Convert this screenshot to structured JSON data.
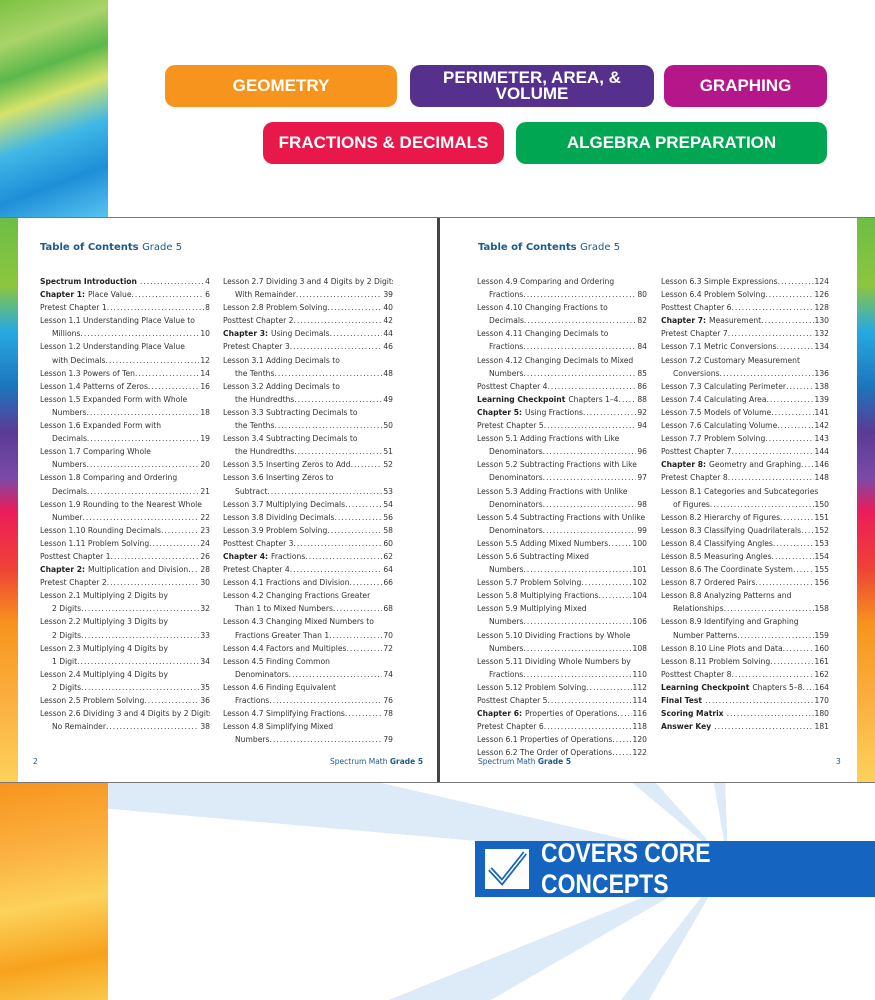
{
  "colors": {
    "geometry": "#f7941d",
    "perimeter": "#55308d",
    "graphing": "#b5178b",
    "fractions": "#e8184a",
    "algebra": "#00a651",
    "banner": "#1565c0",
    "title": "#1c5a8a"
  },
  "topics": [
    "GEOMETRY",
    "PERIMETER, AREA, & VOLUME",
    "GRAPHING",
    "FRACTIONS & DECIMALS",
    "ALGEBRA PREPARATION"
  ],
  "left_page": {
    "title": "Table of Contents",
    "grade": "Grade 5",
    "page_number": "2",
    "footer": "Spectrum Math",
    "footer_grade": "Grade 5"
  },
  "right_page": {
    "title": "Table of Contents",
    "grade": "Grade 5",
    "page_number": "3",
    "footer": "Spectrum Math",
    "footer_grade": "Grade 5"
  },
  "banner": {
    "text": "COVERS CORE CONCEPTS",
    "icon": "checkmark-icon"
  },
  "columns": [
    [
      {
        "b": "Spectrum Introduction",
        "t": "",
        "p": "4"
      },
      {
        "b": "Chapter 1:",
        "t": "Place Value",
        "p": "6"
      },
      {
        "t": "Pretest Chapter 1",
        "p": "8"
      },
      {
        "t": "Lesson 1.1 Understanding Place Value to",
        "c": "Millions",
        "p": "10"
      },
      {
        "t": "Lesson 1.2 Understanding Place Value",
        "c": "with Decimals",
        "p": "12"
      },
      {
        "t": "Lesson 1.3 Powers of Ten",
        "p": "14"
      },
      {
        "t": "Lesson 1.4 Patterns of Zeros",
        "p": "16"
      },
      {
        "t": "Lesson 1.5 Expanded Form with Whole",
        "c": "Numbers",
        "p": "18"
      },
      {
        "t": "Lesson 1.6 Expanded Form with",
        "c": "Decimals",
        "p": "19"
      },
      {
        "t": "Lesson 1.7 Comparing Whole",
        "c": "Numbers",
        "p": "20"
      },
      {
        "t": "Lesson 1.8 Comparing and Ordering",
        "c": "Decimals",
        "p": "21"
      },
      {
        "t": "Lesson 1.9 Rounding to the Nearest Whole",
        "c": "Number",
        "p": "22"
      },
      {
        "t": "Lesson 1.10 Rounding Decimals",
        "p": "23"
      },
      {
        "t": "Lesson 1.11 Problem Solving",
        "p": "24"
      },
      {
        "t": "Posttest Chapter 1",
        "p": "26"
      },
      {
        "b": "Chapter 2:",
        "t": "Multiplication and Division",
        "p": "28"
      },
      {
        "t": "Pretest Chapter 2",
        "p": "30"
      },
      {
        "t": "Lesson 2.1 Multiplying 2 Digits by",
        "c": "2 Digits",
        "p": "32"
      },
      {
        "t": "Lesson 2.2 Multiplying 3 Digits by",
        "c": "2 Digits",
        "p": "33"
      },
      {
        "t": "Lesson 2.3 Multiplying 4 Digits by",
        "c": "1 Digit",
        "p": "34"
      },
      {
        "t": "Lesson 2.4 Multiplying 4 Digits by",
        "c": "2 Digits",
        "p": "35"
      },
      {
        "t": "Lesson 2.5 Problem Solving",
        "p": "36"
      },
      {
        "t": "Lesson 2.6 Dividing 3 and 4 Digits by 2 Digits,",
        "c": "No Remainder",
        "p": "38"
      }
    ],
    [
      {
        "t": "Lesson 2.7 Dividing 3 and 4 Digits by 2 Digits,",
        "c": "With Remainder",
        "p": "39"
      },
      {
        "t": "Lesson 2.8 Problem Solving",
        "p": "40"
      },
      {
        "t": "Posttest Chapter 2",
        "p": "42"
      },
      {
        "b": "Chapter 3:",
        "t": "Using Decimals",
        "p": "44"
      },
      {
        "t": "Pretest Chapter 3",
        "p": "46"
      },
      {
        "t": "Lesson 3.1 Adding Decimals to",
        "c": "the Tenths",
        "p": "48"
      },
      {
        "t": "Lesson 3.2 Adding Decimals to",
        "c": "the Hundredths",
        "p": "49"
      },
      {
        "t": "Lesson 3.3 Subtracting Decimals to",
        "c": "the Tenths",
        "p": "50"
      },
      {
        "t": "Lesson 3.4 Subtracting Decimals to",
        "c": "the Hundredths",
        "p": "51"
      },
      {
        "t": "Lesson 3.5 Inserting Zeros to Add",
        "p": "52"
      },
      {
        "t": "Lesson 3.6 Inserting Zeros to",
        "c": "Subtract",
        "p": "53"
      },
      {
        "t": "Lesson 3.7 Multiplying Decimals",
        "p": "54"
      },
      {
        "t": "Lesson 3.8 Dividing Decimals",
        "p": "56"
      },
      {
        "t": "Lesson 3.9 Problem Solving",
        "p": "58"
      },
      {
        "t": "Posttest Chapter 3",
        "p": "60"
      },
      {
        "b": "Chapter 4:",
        "t": "Fractions",
        "p": "62"
      },
      {
        "t": "Pretest Chapter 4",
        "p": "64"
      },
      {
        "t": "Lesson 4.1 Fractions and Division",
        "p": "66"
      },
      {
        "t": "Lesson 4.2 Changing Fractions Greater",
        "c": "Than 1 to Mixed Numbers",
        "p": "68"
      },
      {
        "t": "Lesson 4.3 Changing Mixed Numbers to",
        "c": "Fractions Greater Than 1",
        "p": "70"
      },
      {
        "t": "Lesson 4.4 Factors and Multiples",
        "p": "72"
      },
      {
        "t": "Lesson 4.5 Finding Common",
        "c": "Denominators",
        "p": "74"
      },
      {
        "t": "Lesson 4.6 Finding Equivalent",
        "c": "Fractions",
        "p": "76"
      },
      {
        "t": "Lesson 4.7 Simplifying Fractions",
        "p": "78"
      },
      {
        "t": "Lesson 4.8 Simplifying Mixed",
        "c": "Numbers",
        "p": "79"
      }
    ],
    [
      {
        "t": "Lesson 4.9 Comparing and Ordering",
        "c": "Fractions",
        "p": "80"
      },
      {
        "t": "Lesson 4.10 Changing Fractions to",
        "c": "Decimals",
        "p": "82"
      },
      {
        "t": "Lesson 4.11 Changing Decimals to",
        "c": "Fractions",
        "p": "84"
      },
      {
        "t": "Lesson 4.12 Changing Decimals to Mixed",
        "c": "Numbers",
        "p": "85"
      },
      {
        "t": "Posttest Chapter 4",
        "p": "86"
      },
      {
        "b": "Learning Checkpoint",
        "t": "Chapters 1–4",
        "p": "88"
      },
      {
        "b": "Chapter 5:",
        "t": "Using Fractions",
        "p": "92"
      },
      {
        "t": "Pretest Chapter 5",
        "p": "94"
      },
      {
        "t": "Lesson 5.1 Adding Fractions with Like",
        "c": "Denominators",
        "p": "96"
      },
      {
        "t": "Lesson 5.2 Subtracting Fractions with Like",
        "c": "Denominators",
        "p": "97"
      },
      {
        "t": "Lesson 5.3 Adding Fractions with Unlike",
        "c": "Denominators",
        "p": "98"
      },
      {
        "t": "Lesson 5.4 Subtracting Fractions with Unlike",
        "c": "Denominators",
        "p": "99"
      },
      {
        "t": "Lesson 5.5 Adding Mixed Numbers",
        "p": "100"
      },
      {
        "t": "Lesson 5.6 Subtracting Mixed",
        "c": "Numbers",
        "p": "101"
      },
      {
        "t": "Lesson 5.7 Problem Solving",
        "p": "102"
      },
      {
        "t": "Lesson 5.8 Multiplying Fractions",
        "p": "104"
      },
      {
        "t": "Lesson 5.9 Multiplying Mixed",
        "c": "Numbers",
        "p": "106"
      },
      {
        "t": "Lesson 5.10 Dividing Fractions by Whole",
        "c": "Numbers",
        "p": "108"
      },
      {
        "t": "Lesson 5.11 Dividing Whole Numbers by",
        "c": "Fractions",
        "p": "110"
      },
      {
        "t": "Lesson 5.12 Problem Solving",
        "p": "112"
      },
      {
        "t": "Posttest Chapter 5",
        "p": "114"
      },
      {
        "b": "Chapter 6:",
        "t": "Properties of Operations",
        "p": "116"
      },
      {
        "t": "Pretest Chapter 6",
        "p": "118"
      },
      {
        "t": "Lesson 6.1 Properties of Operations",
        "p": "120"
      },
      {
        "t": "Lesson 6.2 The Order of Operations",
        "p": "122"
      }
    ],
    [
      {
        "t": "Lesson 6.3 Simple Expressions",
        "p": "124"
      },
      {
        "t": "Lesson 6.4 Problem Solving",
        "p": "126"
      },
      {
        "t": "Posttest Chapter 6",
        "p": "128"
      },
      {
        "b": "Chapter 7:",
        "t": "Measurement",
        "p": "130"
      },
      {
        "t": "Pretest Chapter 7",
        "p": "132"
      },
      {
        "t": "Lesson 7.1 Metric Conversions",
        "p": "134"
      },
      {
        "t": "Lesson 7.2 Customary Measurement",
        "c": "Conversions",
        "p": "136"
      },
      {
        "t": "Lesson 7.3 Calculating Perimeter",
        "p": "138"
      },
      {
        "t": "Lesson 7.4 Calculating Area",
        "p": "139"
      },
      {
        "t": "Lesson 7.5 Models of Volume",
        "p": "141"
      },
      {
        "t": "Lesson 7.6 Calculating Volume",
        "p": "142"
      },
      {
        "t": "Lesson 7.7 Problem Solving",
        "p": "143"
      },
      {
        "t": "Posttest Chapter 7",
        "p": "144"
      },
      {
        "b": "Chapter 8:",
        "t": "Geometry and Graphing",
        "p": "146"
      },
      {
        "t": "Pretest Chapter 8",
        "p": "148"
      },
      {
        "t": "Lesson 8.1 Categories and Subcategories",
        "c": "of Figures",
        "p": "150"
      },
      {
        "t": "Lesson 8.2 Hierarchy of Figures",
        "p": "151"
      },
      {
        "t": "Lesson 8.3 Classifying Quadrilaterals",
        "p": "152"
      },
      {
        "t": "Lesson 8.4 Classifying Angles",
        "p": "153"
      },
      {
        "t": "Lesson 8.5 Measuring Angles",
        "p": "154"
      },
      {
        "t": "Lesson 8.6 The Coordinate System",
        "p": "155"
      },
      {
        "t": "Lesson 8.7 Ordered Pairs",
        "p": "156"
      },
      {
        "t": "Lesson 8.8 Analyzing Patterns and",
        "c": "Relationships",
        "p": "158"
      },
      {
        "t": "Lesson 8.9 Identifying and Graphing",
        "c": "Number Patterns",
        "p": "159"
      },
      {
        "t": "Lesson 8.10 Line Plots and Data",
        "p": "160"
      },
      {
        "t": "Lesson 8.11 Problem Solving",
        "p": "161"
      },
      {
        "t": "Posttest Chapter 8",
        "p": "162"
      },
      {
        "b": "Learning Checkpoint",
        "t": "Chapters 5–8",
        "p": "164"
      },
      {
        "b": "Final Test",
        "t": "",
        "p": "170"
      },
      {
        "b": "Scoring Matrix",
        "t": "",
        "p": "180"
      },
      {
        "b": "Answer Key",
        "t": "",
        "p": "181"
      }
    ]
  ]
}
